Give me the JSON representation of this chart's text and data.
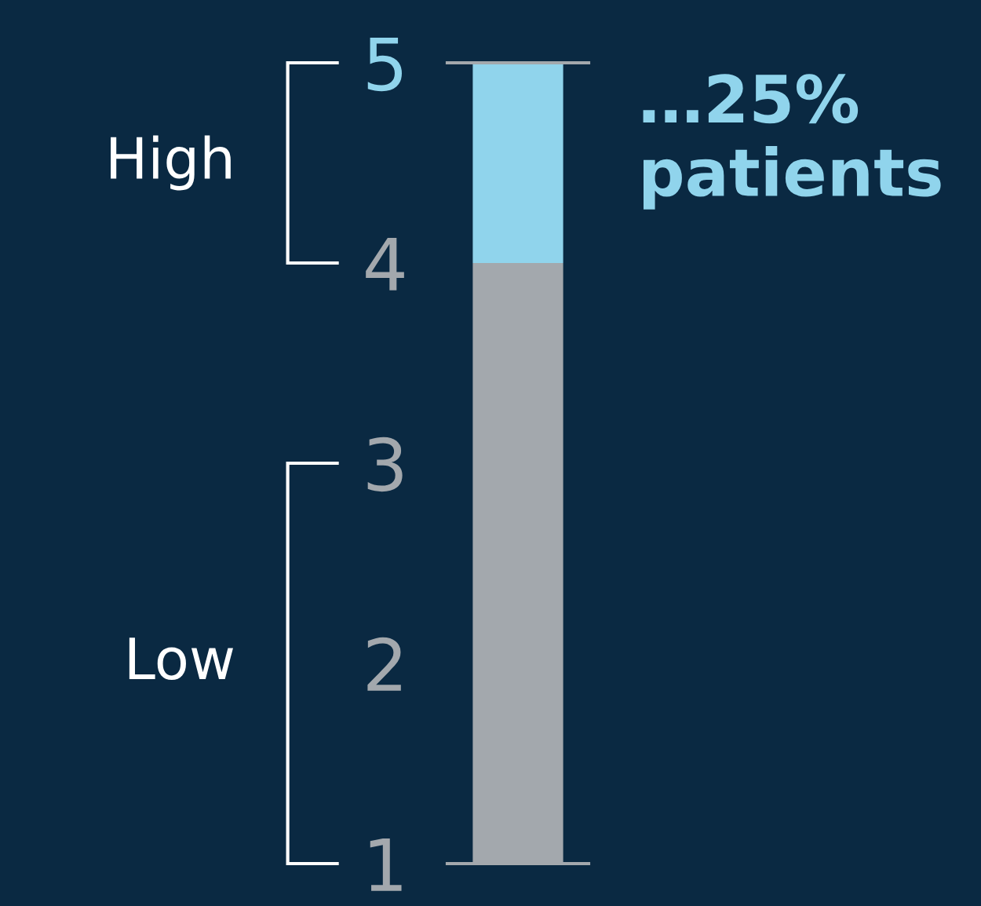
{
  "chart_data": {
    "type": "bar",
    "stacked": true,
    "categories": [
      null
    ],
    "series": [
      {
        "color": "#a3a8ad",
        "values": [
          4
        ]
      },
      {
        "color": "#90d4ec",
        "values": [
          1
        ]
      }
    ],
    "ylim": [
      1,
      5
    ],
    "yticks": [
      1,
      2,
      3,
      4,
      5
    ],
    "grid": false,
    "tick_labels": "y",
    "annotations": [
      "High",
      "Low",
      "…25%\npatients"
    ]
  }
}
